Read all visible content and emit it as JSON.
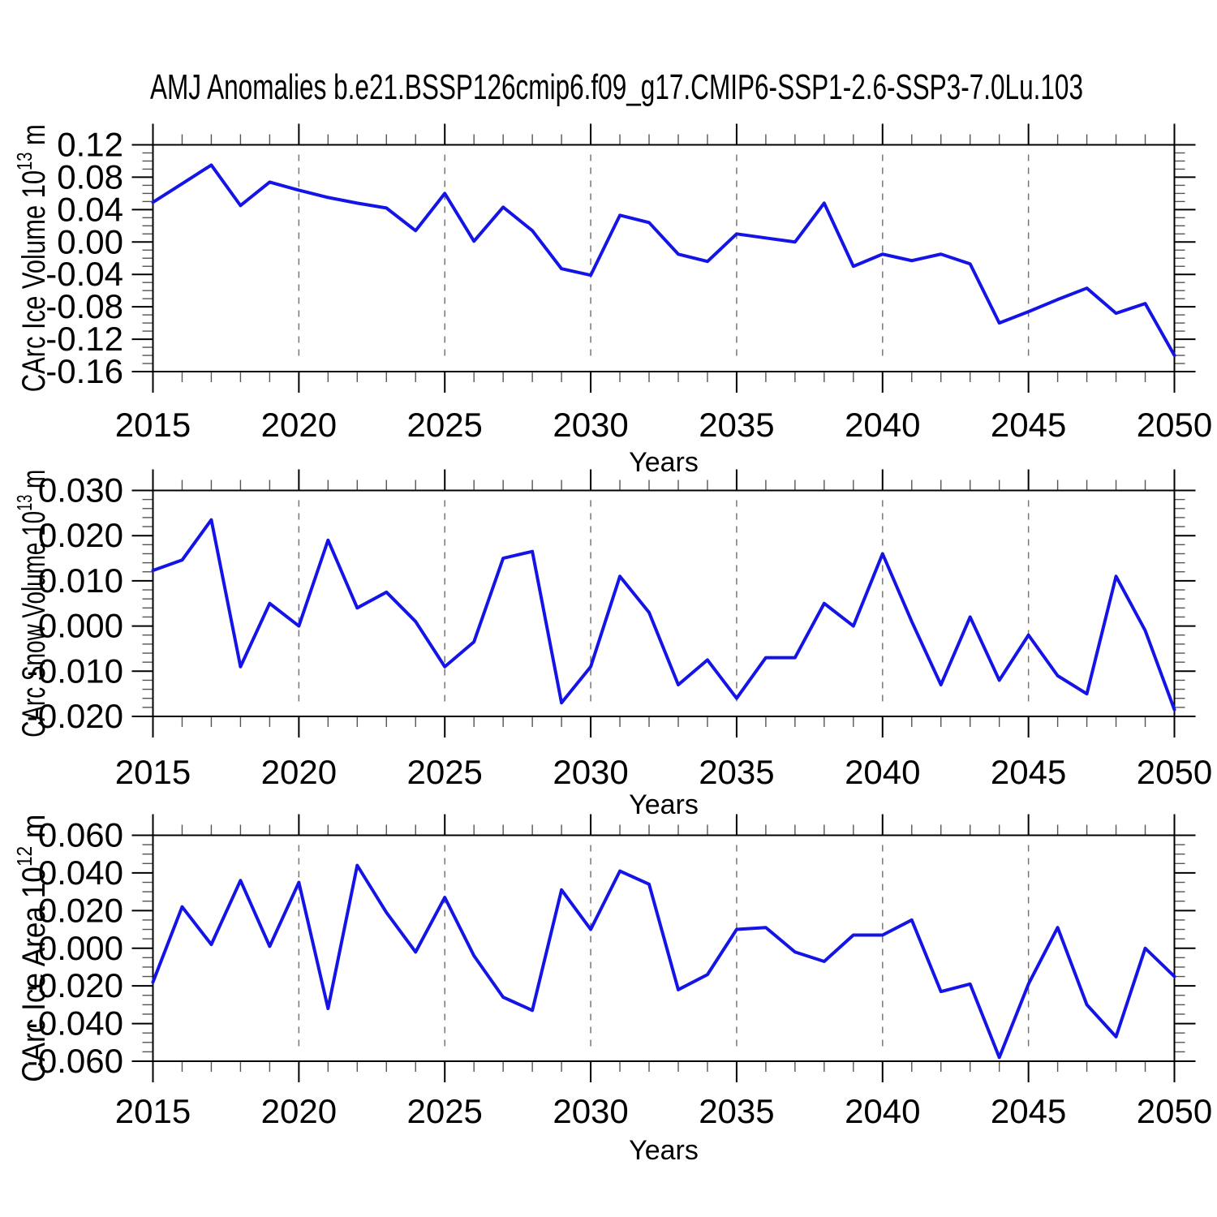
{
  "title": "AMJ Anomalies b.e21.BSSP126cmip6.f09_g17.CMIP6-SSP1-2.6-SSP3-7.0Lu.103",
  "line_color": "#1414e6",
  "x_axis": {
    "label": "Years",
    "start": 2015,
    "end": 2050,
    "major_step": 5,
    "minor_step": 1,
    "major_tick_labels": [
      "2015",
      "2020",
      "2025",
      "2030",
      "2035",
      "2040",
      "2045",
      "2050"
    ],
    "gridline_years": [
      2020,
      2025,
      2030,
      2035,
      2040,
      2045
    ],
    "years": [
      2015,
      2016,
      2017,
      2018,
      2019,
      2020,
      2021,
      2022,
      2023,
      2024,
      2025,
      2026,
      2027,
      2028,
      2029,
      2030,
      2031,
      2032,
      2033,
      2034,
      2035,
      2036,
      2037,
      2038,
      2039,
      2040,
      2041,
      2042,
      2043,
      2044,
      2045,
      2046,
      2047,
      2048,
      2049,
      2050
    ]
  },
  "chart_data": [
    {
      "type": "line",
      "name": "ice-volume",
      "xlabel": "Years",
      "ylabel_plain": "CArc Ice Volume 10^13 m^3",
      "ylabel": {
        "base": "CArc Ice Volume 10",
        "exp": "13",
        "unit": " m",
        "unit_exp": "3"
      },
      "ylim": [
        -0.16,
        0.12
      ],
      "y_major_step": 0.04,
      "y_minor_step": 0.01,
      "y_tick_labels": [
        "0.12",
        "0.08",
        "0.04",
        "0.00",
        "-0.04",
        "-0.08",
        "-0.12",
        "-0.16"
      ],
      "values": [
        0.049,
        0.072,
        0.095,
        0.045,
        0.074,
        0.064,
        0.055,
        0.048,
        0.042,
        0.014,
        0.06,
        0.001,
        0.043,
        0.014,
        -0.033,
        -0.041,
        0.033,
        0.024,
        -0.015,
        -0.024,
        0.01,
        0.005,
        0.0,
        0.048,
        -0.03,
        -0.015,
        -0.023,
        -0.015,
        -0.027,
        -0.1,
        -0.086,
        -0.071,
        -0.057,
        -0.088,
        -0.076,
        -0.14
      ]
    },
    {
      "type": "line",
      "name": "snow-volume",
      "xlabel": "Years",
      "ylabel_plain": "CArc Snow Volume 10^13 m^3",
      "ylabel": {
        "base": "CArc Snow Volume 10",
        "exp": "13",
        "unit": " m",
        "unit_exp": "3"
      },
      "ylim": [
        -0.02,
        0.03
      ],
      "y_major_step": 0.01,
      "y_minor_step": 0.002,
      "y_tick_labels": [
        "0.030",
        "0.020",
        "0.010",
        "0.000",
        "-0.010",
        "-0.020"
      ],
      "values": [
        0.0123,
        0.0146,
        0.0235,
        -0.009,
        0.005,
        0.0,
        0.019,
        0.004,
        0.0075,
        0.001,
        -0.009,
        -0.0035,
        0.015,
        0.0165,
        -0.017,
        -0.009,
        0.011,
        0.003,
        -0.013,
        -0.0075,
        -0.016,
        -0.007,
        -0.007,
        0.005,
        0.0,
        0.016,
        0.001,
        -0.013,
        0.002,
        -0.012,
        -0.002,
        -0.011,
        -0.015,
        0.011,
        -0.001,
        -0.0185
      ]
    },
    {
      "type": "line",
      "name": "ice-area",
      "xlabel": "Years",
      "ylabel_plain": "CArc Ice Area 10^12 m^2",
      "ylabel": {
        "base": "CArc Ice Area 10",
        "exp": "12",
        "unit": " m",
        "unit_exp": "2"
      },
      "ylim": [
        -0.06,
        0.06
      ],
      "y_major_step": 0.02,
      "y_minor_step": 0.005,
      "y_tick_labels": [
        "0.060",
        "0.040",
        "0.020",
        "0.000",
        "-0.020",
        "-0.040",
        "-0.060"
      ],
      "values": [
        -0.018,
        0.022,
        0.002,
        0.036,
        0.001,
        0.035,
        -0.032,
        0.044,
        0.019,
        -0.002,
        0.027,
        -0.004,
        -0.026,
        -0.033,
        0.031,
        0.01,
        0.041,
        0.034,
        -0.022,
        -0.014,
        0.01,
        0.011,
        -0.002,
        -0.007,
        0.007,
        0.007,
        0.015,
        -0.023,
        -0.019,
        -0.058,
        -0.019,
        0.011,
        -0.03,
        -0.047,
        0.0,
        -0.015
      ]
    }
  ]
}
